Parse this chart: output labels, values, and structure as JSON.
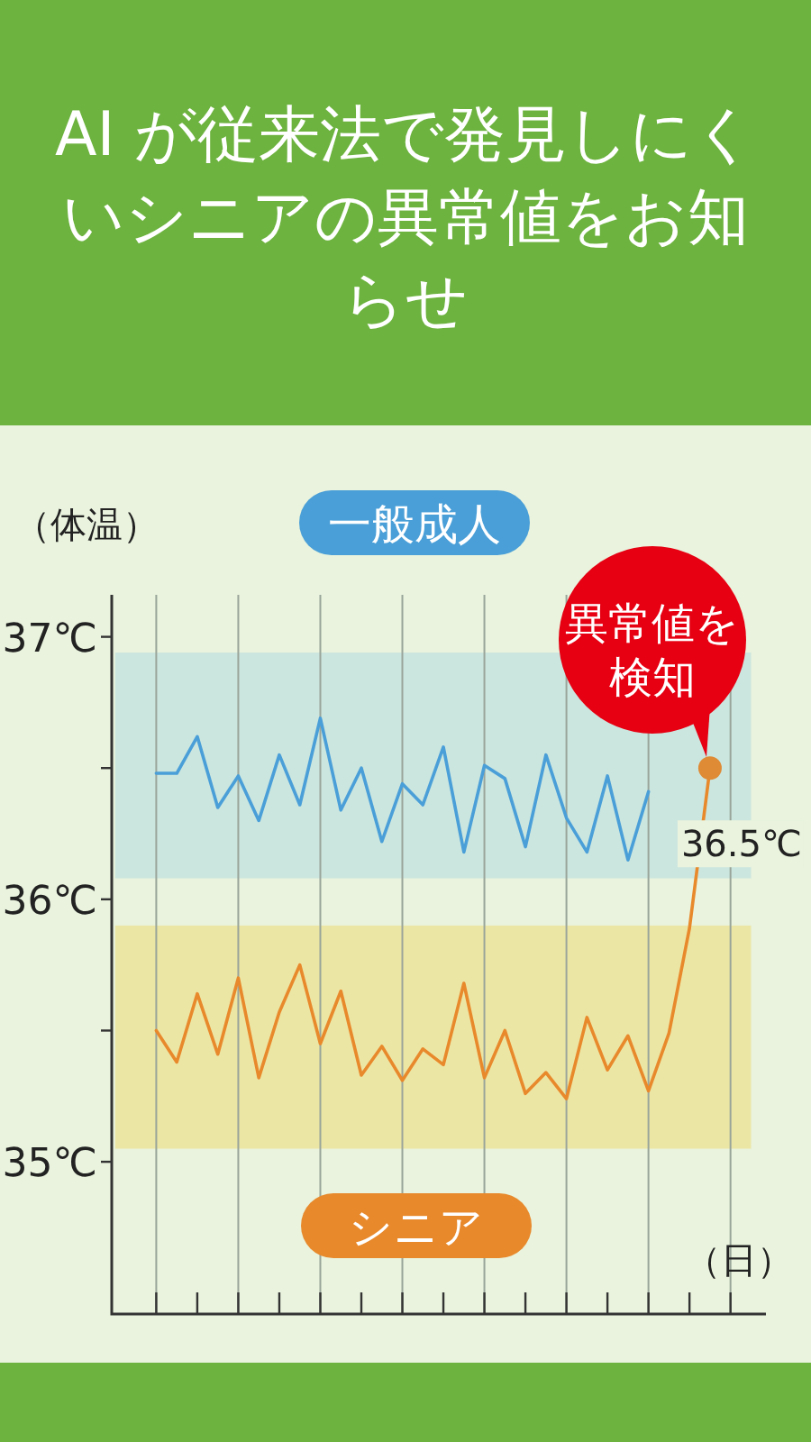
{
  "chart_data": {
    "type": "line",
    "title": "AI が従来法で発見しにくいシニアの異常値をお知らせ",
    "ylabel": "（体温）",
    "xlabel": "（日）",
    "categories": [
      null,
      null,
      null,
      null,
      null,
      null,
      null,
      null,
      null,
      null,
      null,
      null,
      null,
      null,
      null,
      null,
      null,
      null,
      null,
      null,
      null,
      null,
      null,
      null,
      null,
      null,
      null,
      null
    ],
    "series": [
      {
        "name": "一般成人",
        "color": "#4a9fd8",
        "values": [
          36.48,
          36.48,
          36.62,
          36.35,
          36.47,
          36.3,
          36.55,
          36.36,
          36.69,
          36.34,
          36.5,
          36.22,
          36.44,
          36.36,
          36.58,
          36.18,
          36.51,
          36.46,
          36.2,
          36.55,
          36.31,
          36.18,
          36.47,
          36.15,
          36.41,
          null,
          null,
          null
        ]
      },
      {
        "name": "シニア",
        "color": "#e8892c",
        "values": [
          35.5,
          35.38,
          35.64,
          35.41,
          35.7,
          35.32,
          35.57,
          35.75,
          35.45,
          35.65,
          35.33,
          35.44,
          35.31,
          35.43,
          35.37,
          35.68,
          35.32,
          35.5,
          35.26,
          35.34,
          35.24,
          35.55,
          35.35,
          35.48,
          35.27,
          35.49,
          35.89,
          36.5
        ],
        "value_labels": [
          null,
          null,
          null,
          null,
          null,
          null,
          null,
          null,
          null,
          null,
          null,
          null,
          null,
          null,
          null,
          null,
          null,
          null,
          null,
          null,
          null,
          null,
          null,
          null,
          null,
          null,
          null,
          "36.5℃"
        ]
      }
    ],
    "ylim": [
      34.42,
      37.16
    ],
    "yticks": [
      {
        "value": 35,
        "label": "35℃"
      },
      {
        "value": 35.5,
        "label": null
      },
      {
        "value": 36,
        "label": "36℃"
      },
      {
        "value": 36.5,
        "label": null
      },
      {
        "value": 37,
        "label": "37℃"
      }
    ],
    "bands": [
      {
        "axis": "y",
        "from": 36.08,
        "to": 36.94,
        "color": "#c5e3df"
      },
      {
        "axis": "y",
        "from": 35.05,
        "to": 35.9,
        "color": "#ece39a"
      }
    ],
    "grid": "x",
    "marker": "none",
    "line_style": "solid",
    "annotations": [
      "異常値を検知"
    ]
  }
}
